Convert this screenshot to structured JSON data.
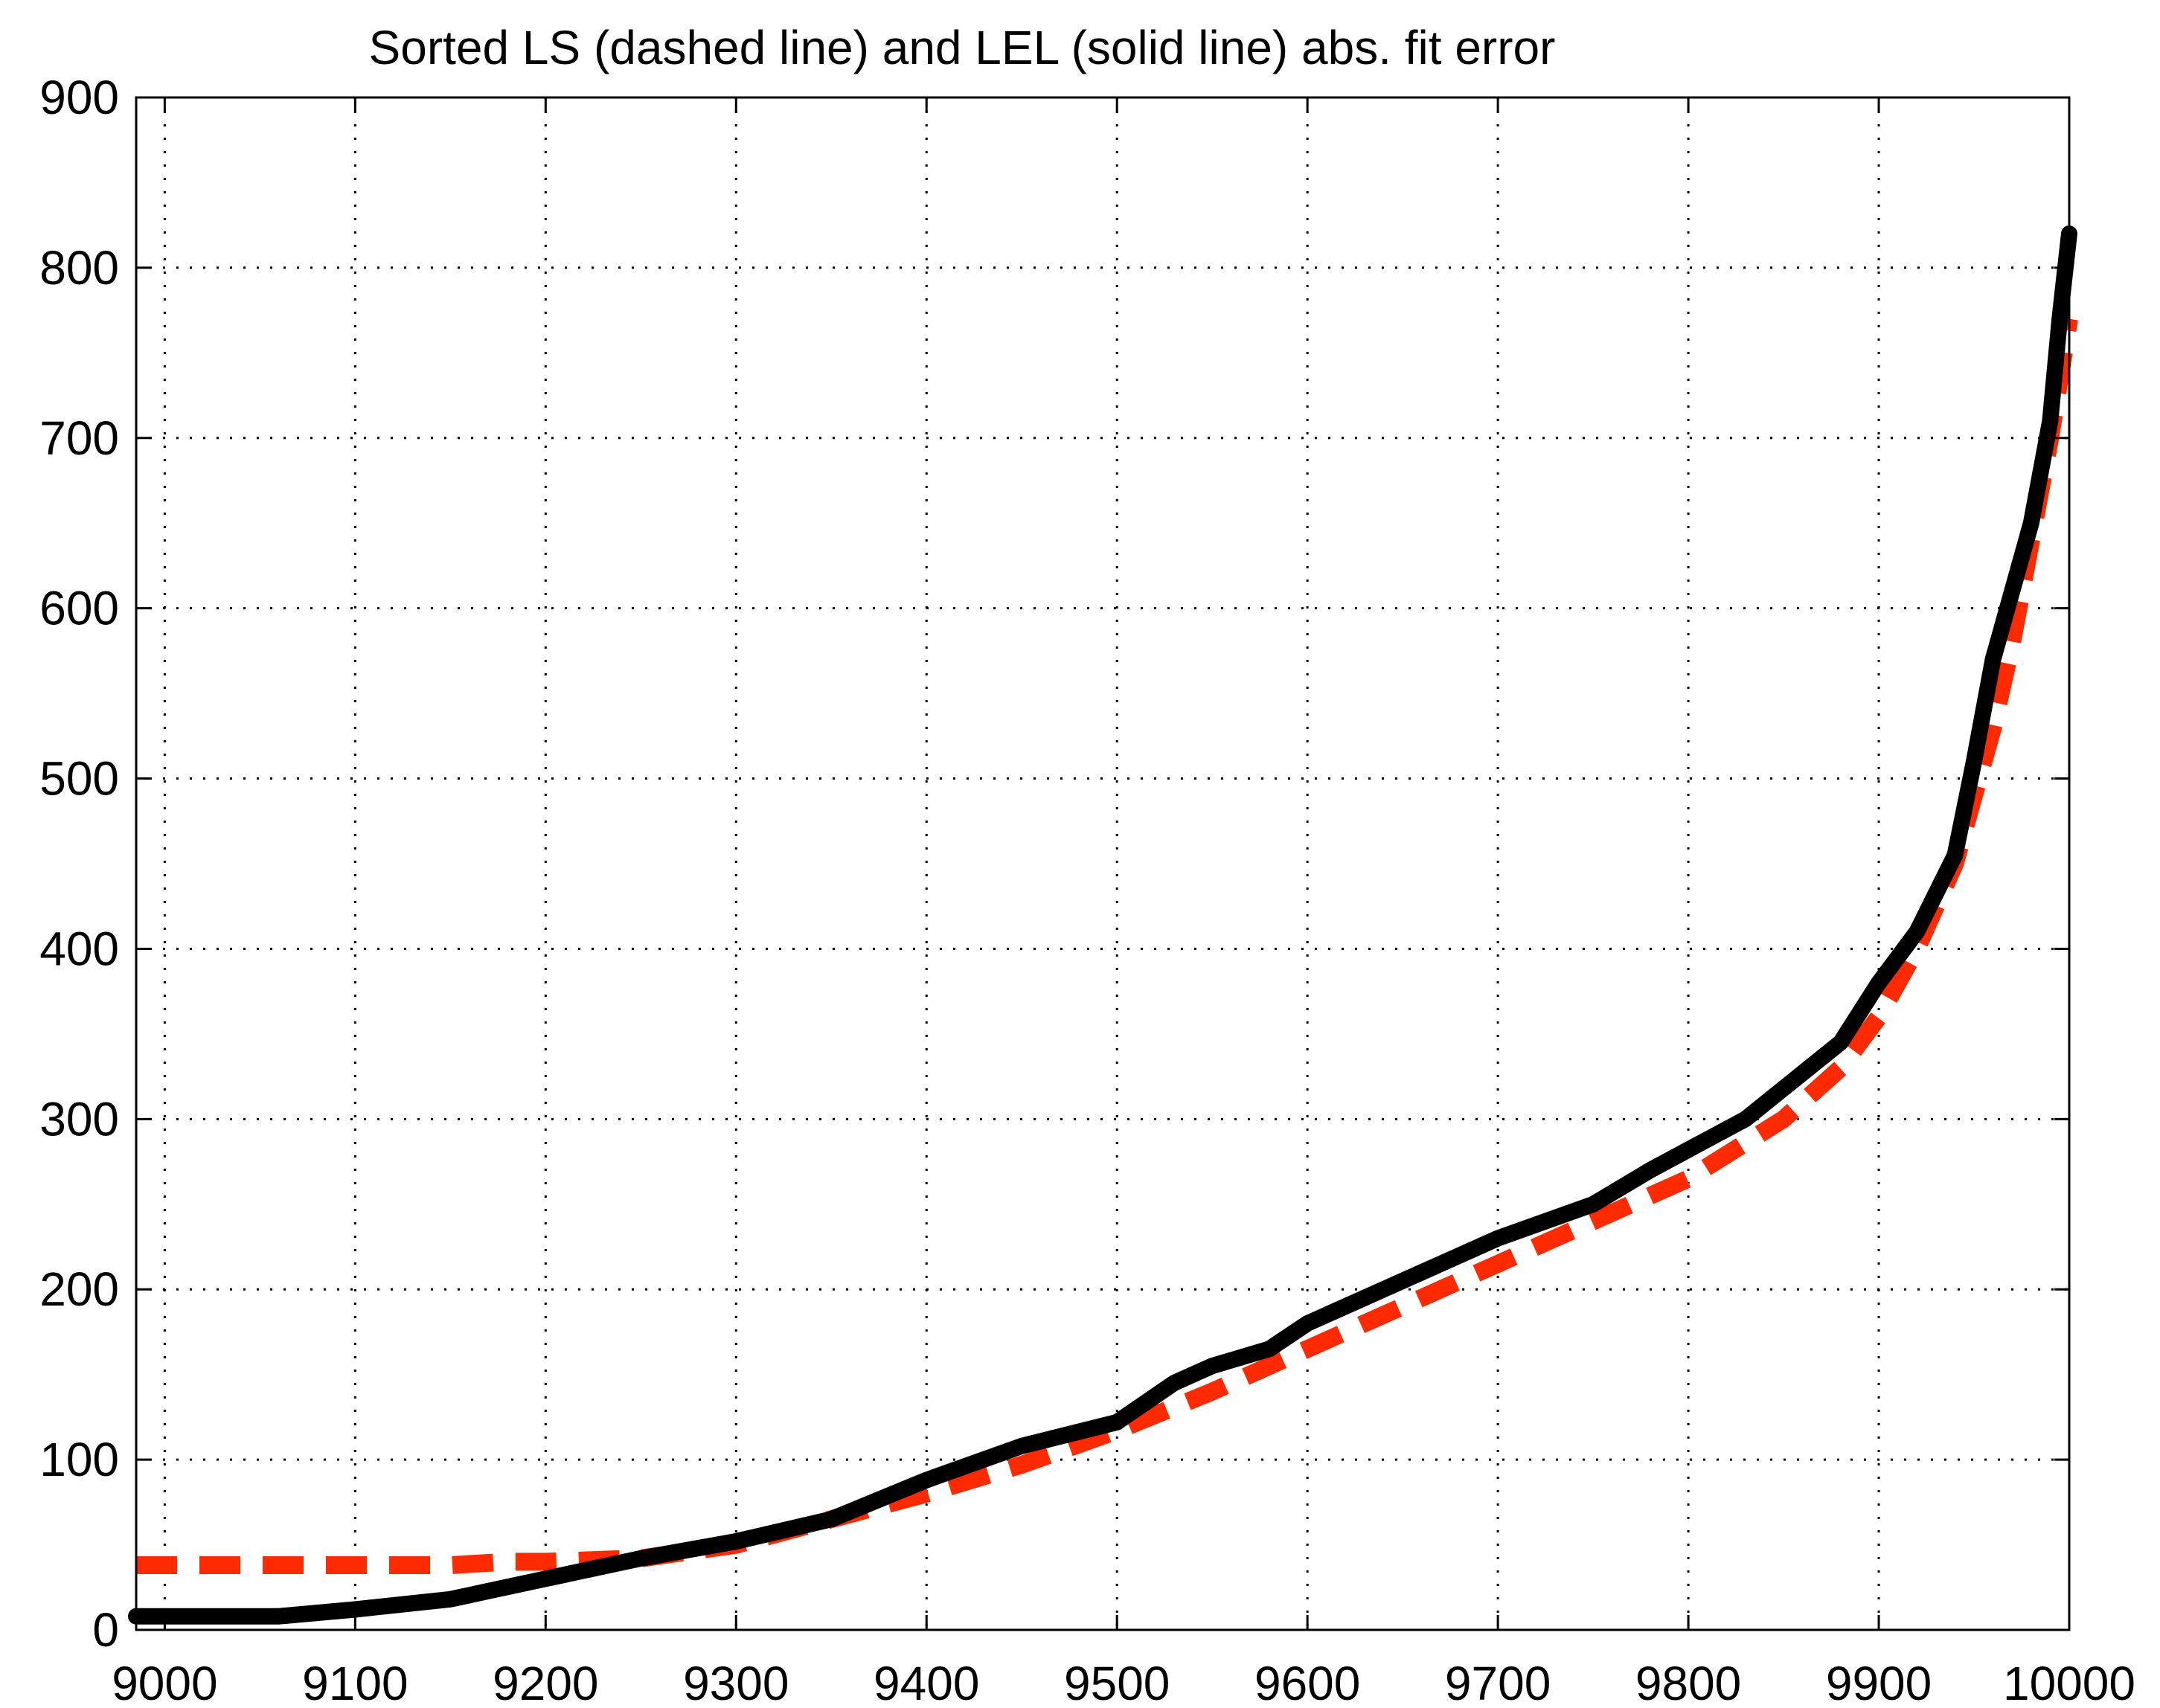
{
  "chart_data": {
    "type": "line",
    "title": "Sorted LS (dashed line) and LEL (solid line) abs. fit error",
    "xlabel": "",
    "ylabel": "",
    "xlim": [
      8985,
      10000
    ],
    "ylim": [
      0,
      900
    ],
    "xticks": [
      9000,
      9100,
      9200,
      9300,
      9400,
      9500,
      9600,
      9700,
      9800,
      9900,
      10000
    ],
    "yticks": [
      0,
      100,
      200,
      300,
      400,
      500,
      600,
      700,
      800,
      900
    ],
    "xtick_labels": [
      "9000",
      "9100",
      "9200",
      "9300",
      "9400",
      "9500",
      "9600",
      "9700",
      "9800",
      "9900",
      "10000"
    ],
    "ytick_labels": [
      "0",
      "100",
      "200",
      "300",
      "400",
      "500",
      "600",
      "700",
      "800",
      "900"
    ],
    "grid": true,
    "series": [
      {
        "style": "dashed",
        "color": "#ff2a00",
        "x": [
          8985,
          9150,
          9180,
          9200,
          9250,
          9300,
          9350,
          9400,
          9450,
          9500,
          9550,
          9600,
          9650,
          9700,
          9750,
          9800,
          9850,
          9880,
          9900,
          9920,
          9940,
          9950,
          9960,
          9970,
          9980,
          9990,
          10000
        ],
        "y": [
          38,
          38,
          40,
          40,
          42,
          50,
          65,
          80,
          97,
          117,
          140,
          165,
          190,
          215,
          240,
          265,
          300,
          330,
          360,
          400,
          450,
          490,
          530,
          580,
          640,
          700,
          770
        ]
      },
      {
        "style": "solid",
        "color": "#000000",
        "x": [
          8985,
          9060,
          9100,
          9150,
          9200,
          9250,
          9300,
          9350,
          9400,
          9450,
          9500,
          9530,
          9550,
          9580,
          9600,
          9650,
          9700,
          9750,
          9780,
          9800,
          9830,
          9850,
          9880,
          9900,
          9920,
          9940,
          9950,
          9960,
          9970,
          9980,
          9990,
          9995,
          10000
        ],
        "y": [
          8,
          8,
          12,
          18,
          30,
          42,
          52,
          65,
          88,
          108,
          122,
          145,
          155,
          165,
          180,
          205,
          230,
          250,
          270,
          282,
          300,
          318,
          345,
          380,
          410,
          455,
          510,
          570,
          610,
          650,
          710,
          770,
          820
        ]
      }
    ]
  },
  "colors": {
    "background": "#ffffff",
    "axes": "#000000",
    "grid": "#000000"
  }
}
